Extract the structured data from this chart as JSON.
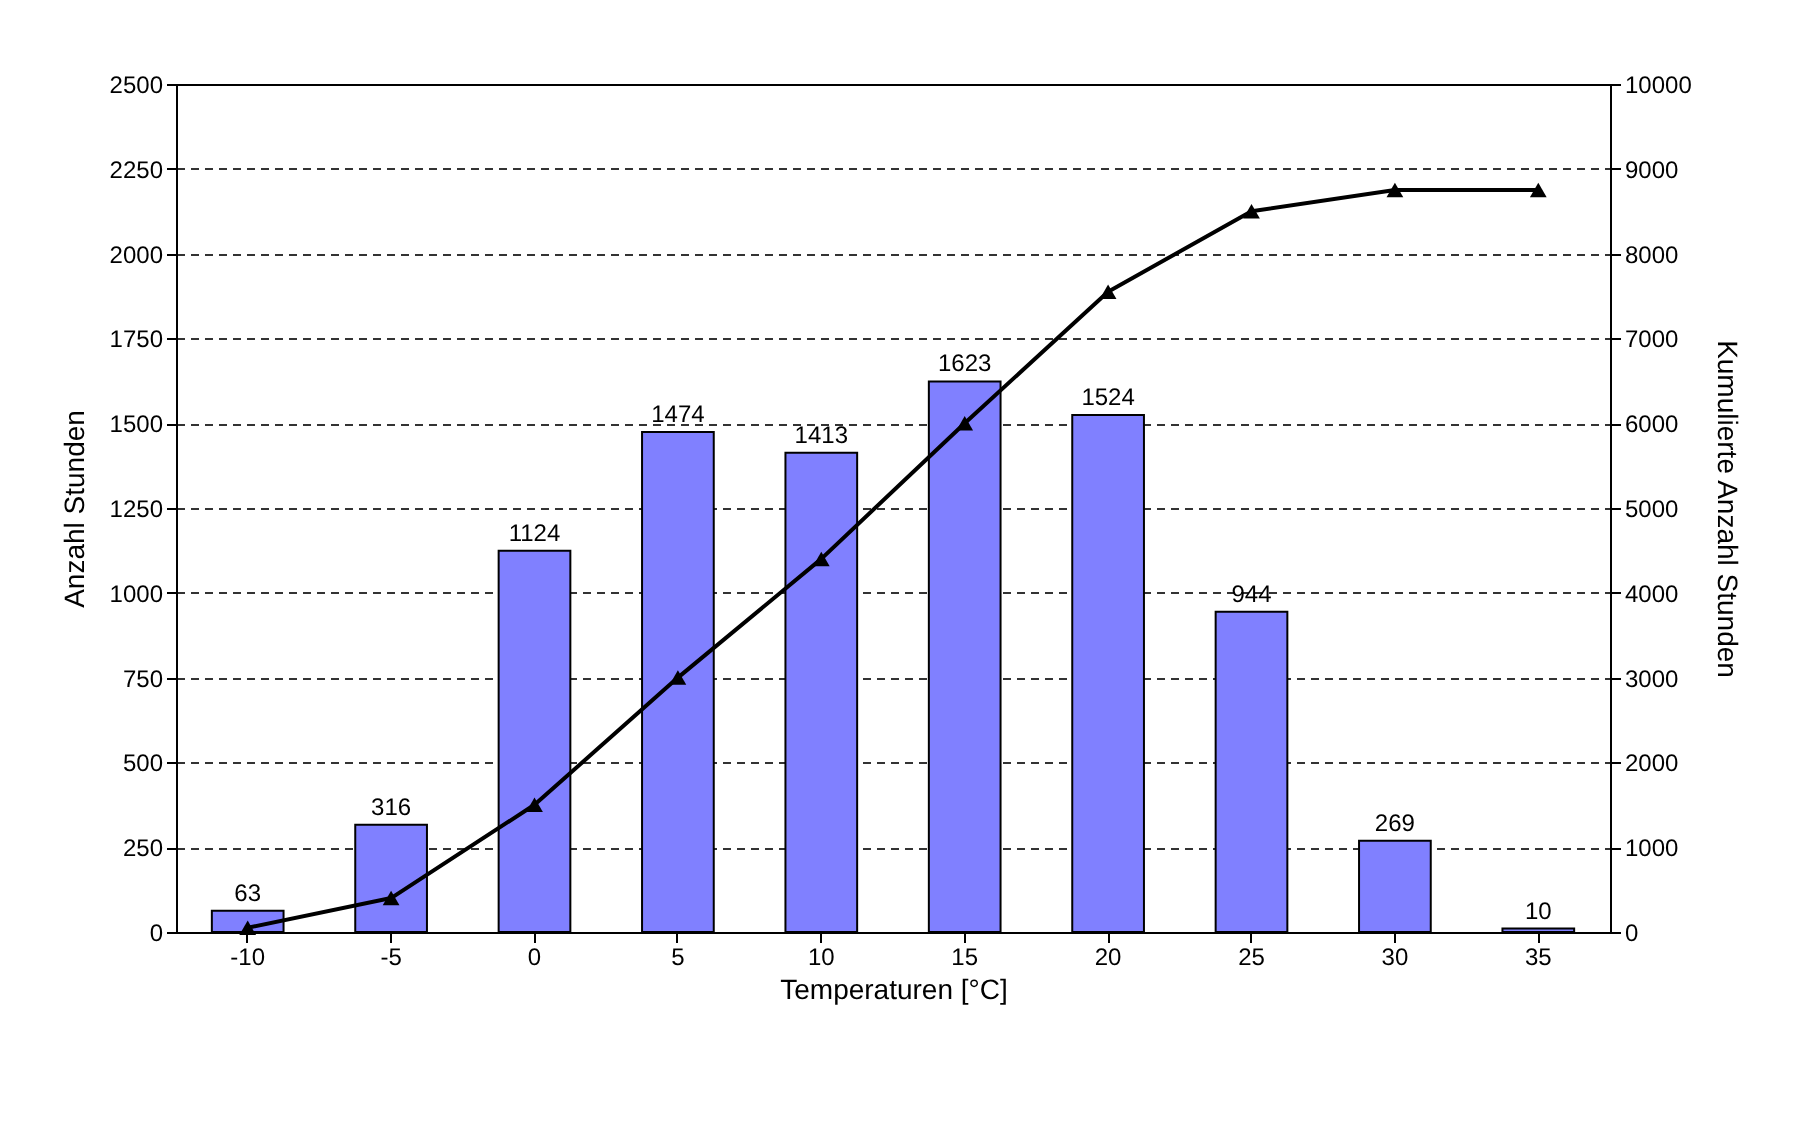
{
  "chart_data": {
    "type": "bar",
    "xlabel": "Temperaturen [°C]",
    "ylabel": "Anzahl Stunden",
    "y2label": "Kumulierte Anzahl Stunden",
    "categories": [
      "-10",
      "-5",
      "0",
      "5",
      "10",
      "15",
      "20",
      "25",
      "30",
      "35"
    ],
    "series": [
      {
        "color": "#8080ff",
        "values": [
          63,
          316,
          1124,
          1474,
          1413,
          1623,
          1524,
          944,
          269,
          10
        ],
        "value_labels": [
          "63",
          "316",
          "1124",
          "1474",
          "1413",
          "1623",
          "1524",
          "944",
          "269",
          "10"
        ]
      },
      {
        "type": "line",
        "axis": "y2",
        "color": "#000000",
        "marker": "triangle",
        "line_style": "solid",
        "values": [
          50,
          400,
          1500,
          3000,
          4400,
          6000,
          7550,
          8500,
          8750,
          8750
        ]
      }
    ],
    "ylim": [
      0,
      2500
    ],
    "yticks": [
      0,
      250,
      500,
      750,
      1000,
      1250,
      1500,
      1750,
      2000,
      2250,
      2500
    ],
    "y2lim": [
      0,
      10000
    ],
    "y2ticks": [
      0,
      1000,
      2000,
      3000,
      4000,
      5000,
      6000,
      7000,
      8000,
      9000,
      10000
    ],
    "grid": "y"
  }
}
